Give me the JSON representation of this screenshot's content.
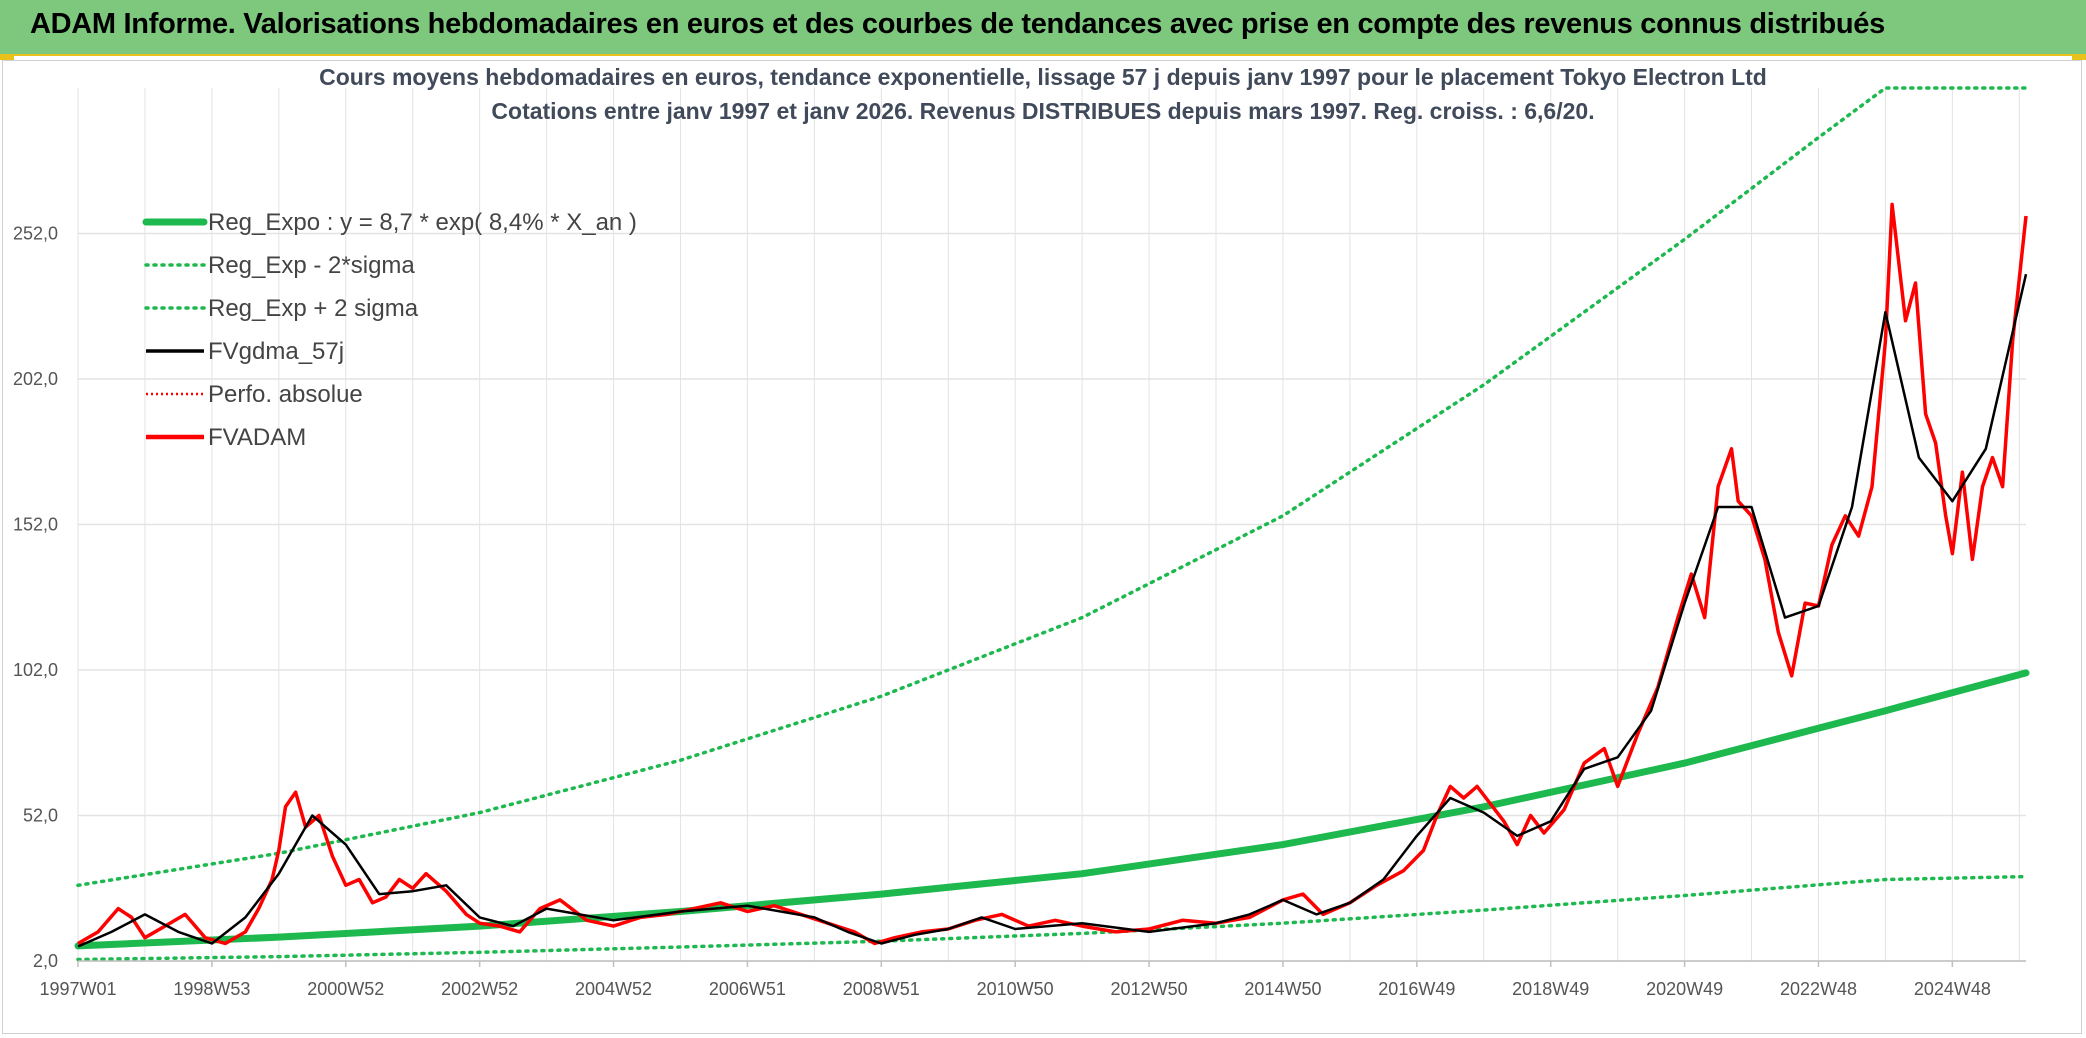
{
  "header": {
    "title": "ADAM Informe. Valorisations hebdomadaires en euros et des courbes de tendances avec prise en compte des revenus connus distribués"
  },
  "colors": {
    "header_bg": "#7ec87e",
    "header_border": "#e8c21a",
    "reg_expo": "#1db84e",
    "fvadam": "#ff0000",
    "fvgdma": "#000000",
    "grid": "#e3e3e3"
  },
  "chart_data": {
    "type": "line",
    "title_lines": [
      "Cours moyens hebdomadaires en euros, tendance exponentielle, lissage 57 j depuis janv 1997 pour le placement Tokyo Electron Ltd",
      "Cotations entre janv 1997 et janv 2026. Revenus DISTRIBUES depuis mars 1997. Reg. croiss. : 6,6/20."
    ],
    "x_range": [
      1997.0,
      2026.1
    ],
    "ylim": [
      2,
      302
    ],
    "y_ticks": [
      2,
      52,
      102,
      152,
      202,
      252
    ],
    "y_tick_labels": [
      "2,0",
      "52,0",
      "102,0",
      "152,0",
      "202,0",
      "252,0"
    ],
    "x_ticks": [
      1997.0,
      1999.0,
      2001.0,
      2003.0,
      2005.0,
      2007.0,
      2009.0,
      2011.0,
      2013.0,
      2015.0,
      2017.0,
      2019.0,
      2021.0,
      2023.0,
      2025.0
    ],
    "x_tick_labels": [
      "1997W01",
      "1998W53",
      "2000W52",
      "2002W52",
      "2004W52",
      "2006W51",
      "2008W51",
      "2010W50",
      "2012W50",
      "2014W50",
      "2016W49",
      "2018W49",
      "2020W49",
      "2022W48",
      "2024W48"
    ],
    "grid": true,
    "legend_position": "top-left",
    "legend": [
      {
        "key": "reg_expo",
        "label": "Reg_Expo : y = 8,7 * exp( 8,4% *  X_an )"
      },
      {
        "key": "reg_minus",
        "label": "Reg_Exp - 2*sigma"
      },
      {
        "key": "reg_plus",
        "label": "Reg_Exp + 2 sigma"
      },
      {
        "key": "fvgdma",
        "label": "FVgdma_57j"
      },
      {
        "key": "perfo",
        "label": "Perfo. absolue"
      },
      {
        "key": "fvadam",
        "label": "FVADAM"
      }
    ],
    "series": [
      {
        "name": "Reg_Expo",
        "x": [
          1997.0,
          2000.0,
          2003.0,
          2006.0,
          2009.0,
          2012.0,
          2015.0,
          2018.0,
          2021.0,
          2024.0,
          2026.1
        ],
        "values": [
          7.2,
          10.2,
          14.0,
          19.0,
          25.0,
          32.0,
          42.0,
          55.0,
          70.0,
          88.0,
          101.0
        ]
      },
      {
        "name": "Reg_Exp - 2*sigma",
        "x": [
          1997.0,
          2000.0,
          2003.0,
          2006.0,
          2009.0,
          2012.0,
          2015.0,
          2018.0,
          2021.0,
          2024.0,
          2026.1
        ],
        "values": [
          2.5,
          3.5,
          5.0,
          6.8,
          8.8,
          11.5,
          15.0,
          19.5,
          24.5,
          30.0,
          31.0
        ]
      },
      {
        "name": "Reg_Exp + 2 sigma",
        "x": [
          1997.0,
          2000.0,
          2003.0,
          2006.0,
          2009.0,
          2012.0,
          2015.0,
          2018.0,
          2021.0,
          2023.0,
          2024.0,
          2024.8,
          2026.1
        ],
        "values": [
          28.0,
          39.0,
          53.0,
          71.0,
          93.0,
          120.0,
          155.0,
          200.0,
          250.0,
          285.0,
          302.0,
          302.0,
          302.0
        ]
      },
      {
        "name": "FVgdma_57j",
        "x": [
          1997.0,
          1997.5,
          1998.0,
          1998.5,
          1999.0,
          1999.5,
          2000.0,
          2000.5,
          2001.0,
          2001.5,
          2002.0,
          2002.5,
          2003.0,
          2003.5,
          2004.0,
          2005.0,
          2006.0,
          2006.5,
          2007.0,
          2008.0,
          2008.5,
          2009.0,
          2009.5,
          2010.0,
          2010.5,
          2011.0,
          2012.0,
          2013.0,
          2014.0,
          2014.5,
          2015.0,
          2015.5,
          2016.0,
          2016.5,
          2017.0,
          2017.5,
          2018.0,
          2018.5,
          2019.0,
          2019.5,
          2020.0,
          2020.5,
          2021.0,
          2021.5,
          2022.0,
          2022.5,
          2023.0,
          2023.5,
          2024.0,
          2024.5,
          2025.0,
          2025.5,
          2026.1
        ],
        "values": [
          7.0,
          12.0,
          18.0,
          12.0,
          8.0,
          17.0,
          32.0,
          52.0,
          42.0,
          25.0,
          26.0,
          28.0,
          17.0,
          14.0,
          20.0,
          16.0,
          19.0,
          20.0,
          21.0,
          17.0,
          12.0,
          8.0,
          11.0,
          13.0,
          17.0,
          13.0,
          15.0,
          12.0,
          15.0,
          18.0,
          23.0,
          18.0,
          22.0,
          30.0,
          45.0,
          58.0,
          53.0,
          45.0,
          50.0,
          68.0,
          72.0,
          88.0,
          125.0,
          158.0,
          158.0,
          120.0,
          124.0,
          158.0,
          225.0,
          175.0,
          160.0,
          178.0,
          238.0
        ]
      },
      {
        "name": "FVADAM",
        "x": [
          1997.0,
          1997.3,
          1997.6,
          1997.8,
          1998.0,
          1998.3,
          1998.6,
          1998.9,
          1999.2,
          1999.5,
          1999.7,
          1999.9,
          2000.0,
          2000.1,
          2000.25,
          2000.4,
          2000.6,
          2000.8,
          2001.0,
          2001.2,
          2001.4,
          2001.6,
          2001.8,
          2002.0,
          2002.2,
          2002.5,
          2002.8,
          2003.0,
          2003.3,
          2003.6,
          2003.9,
          2004.2,
          2004.6,
          2005.0,
          2005.4,
          2005.8,
          2006.2,
          2006.6,
          2007.0,
          2007.4,
          2007.8,
          2008.2,
          2008.6,
          2008.9,
          2009.2,
          2009.6,
          2010.0,
          2010.4,
          2010.8,
          2011.2,
          2011.6,
          2012.0,
          2012.5,
          2013.0,
          2013.5,
          2014.0,
          2014.5,
          2015.0,
          2015.3,
          2015.6,
          2016.0,
          2016.4,
          2016.8,
          2017.1,
          2017.3,
          2017.5,
          2017.7,
          2017.9,
          2018.1,
          2018.3,
          2018.5,
          2018.7,
          2018.9,
          2019.2,
          2019.5,
          2019.8,
          2020.0,
          2020.3,
          2020.6,
          2020.9,
          2021.1,
          2021.3,
          2021.5,
          2021.7,
          2021.8,
          2022.0,
          2022.2,
          2022.4,
          2022.6,
          2022.8,
          2023.0,
          2023.2,
          2023.4,
          2023.6,
          2023.8,
          2024.0,
          2024.1,
          2024.3,
          2024.45,
          2024.6,
          2024.75,
          2024.9,
          2025.0,
          2025.15,
          2025.3,
          2025.45,
          2025.6,
          2025.75,
          2025.9,
          2026.1
        ],
        "values": [
          8.0,
          12.0,
          20.0,
          17.0,
          10.0,
          14.0,
          18.0,
          10.0,
          8.0,
          12.0,
          20.0,
          30.0,
          40.0,
          55.0,
          60.0,
          48.0,
          52.0,
          38.0,
          28.0,
          30.0,
          22.0,
          24.0,
          30.0,
          27.0,
          32.0,
          26.0,
          18.0,
          15.0,
          14.0,
          12.0,
          20.0,
          23.0,
          16.0,
          14.0,
          17.0,
          18.0,
          20.0,
          22.0,
          19.0,
          21.0,
          18.0,
          15.0,
          12.0,
          8.0,
          10.0,
          12.0,
          13.0,
          16.0,
          18.0,
          14.0,
          16.0,
          14.0,
          12.0,
          13.0,
          16.0,
          15.0,
          17.0,
          23.0,
          25.0,
          18.0,
          22.0,
          28.0,
          33.0,
          40.0,
          52.0,
          62.0,
          58.0,
          62.0,
          56.0,
          50.0,
          42.0,
          52.0,
          46.0,
          54.0,
          70.0,
          75.0,
          62.0,
          80.0,
          96.0,
          120.0,
          135.0,
          120.0,
          165.0,
          178.0,
          160.0,
          155.0,
          140.0,
          115.0,
          100.0,
          125.0,
          124.0,
          145.0,
          155.0,
          148.0,
          165.0,
          215.0,
          262.0,
          222.0,
          235.0,
          190.0,
          180.0,
          155.0,
          142.0,
          170.0,
          140.0,
          165.0,
          175.0,
          165.0,
          215.0,
          258.0
        ]
      }
    ]
  }
}
